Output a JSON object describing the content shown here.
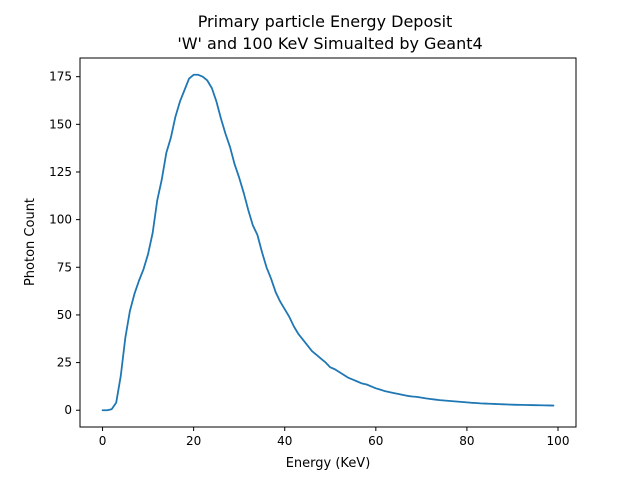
{
  "chart_data": {
    "type": "line",
    "title_line1": "Primary particle Energy Deposit",
    "title_line2": "'W' and 100 KeV Simualted by Geant4",
    "xlabel": "Energy (KeV)",
    "ylabel": "Photon Count",
    "xlim": [
      -4.95,
      103.95
    ],
    "ylim": [
      -8.8,
      184.8
    ],
    "xticks": [
      0,
      20,
      40,
      60,
      80,
      100
    ],
    "yticks": [
      0,
      25,
      50,
      75,
      100,
      125,
      150,
      175
    ],
    "grid": false,
    "line_color": "#1f77b4",
    "series": [
      {
        "x": [
          0,
          1,
          2,
          3,
          4,
          5,
          6,
          7,
          8,
          9,
          10,
          11,
          12,
          13,
          14,
          15,
          16,
          17,
          18,
          19,
          20,
          21,
          22,
          23,
          24,
          25,
          26,
          27,
          28,
          29,
          30,
          31,
          32,
          33,
          34,
          35,
          36,
          37,
          38,
          39,
          40,
          41,
          42,
          43,
          44,
          45,
          46,
          47,
          48,
          49,
          50,
          51,
          52,
          53,
          54,
          55,
          56,
          57,
          58,
          59,
          60,
          61,
          62,
          63,
          64,
          65,
          66,
          67,
          68,
          69,
          70,
          71,
          72,
          73,
          74,
          75,
          76,
          77,
          78,
          79,
          80,
          81,
          82,
          83,
          84,
          85,
          86,
          87,
          88,
          89,
          90,
          91,
          92,
          93,
          94,
          95,
          96,
          97,
          98,
          99
        ],
        "values": [
          0,
          0,
          0.5,
          4,
          18,
          38,
          52,
          61,
          68,
          74,
          82,
          93,
          110,
          121,
          135,
          143,
          154,
          162,
          168,
          174,
          176,
          176,
          175,
          173,
          169,
          162,
          153,
          145,
          138,
          129,
          122,
          114,
          105,
          97,
          92,
          83,
          75,
          69,
          62,
          57,
          53,
          49,
          44,
          40,
          37,
          34,
          31,
          29,
          27,
          25,
          22.5,
          21.5,
          20,
          18.5,
          17,
          16,
          15,
          14,
          13.5,
          12.5,
          11.5,
          10.8,
          10,
          9.5,
          9,
          8.5,
          8,
          7.5,
          7.2,
          7,
          6.6,
          6.2,
          5.9,
          5.6,
          5.3,
          5.1,
          4.9,
          4.7,
          4.5,
          4.3,
          4.1,
          3.9,
          3.8,
          3.6,
          3.5,
          3.4,
          3.3,
          3.2,
          3.1,
          3.0,
          2.9,
          2.85,
          2.8,
          2.75,
          2.7,
          2.65,
          2.6,
          2.55,
          2.5,
          2.45
        ]
      }
    ]
  }
}
